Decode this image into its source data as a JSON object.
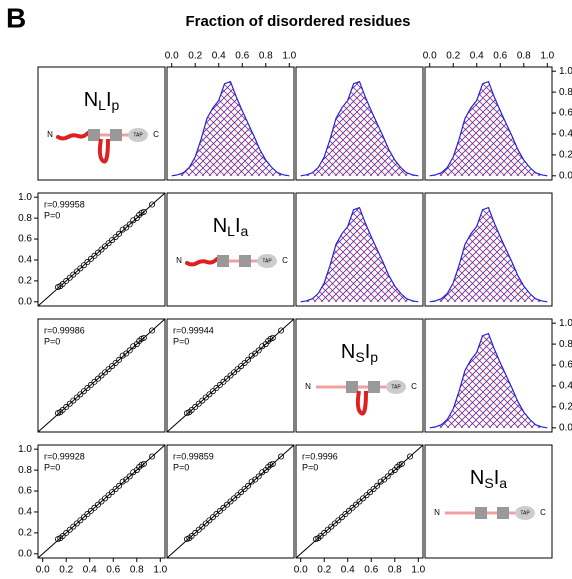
{
  "panel_label": "B",
  "title": "Fraction of disordered residues",
  "axis": {
    "lim": [
      0,
      1
    ],
    "ticks": [
      {
        "value": 0,
        "label": "0.0"
      },
      0.2,
      0.4,
      0.6,
      0.8,
      {
        "value": 1,
        "label": "1.0"
      }
    ]
  },
  "variables": [
    {
      "label": [
        "N",
        "L",
        "I",
        "p"
      ]
    },
    {
      "label": [
        "N",
        "L",
        "I",
        "a"
      ]
    },
    {
      "label": [
        "N",
        "S",
        "I",
        "p"
      ]
    },
    {
      "label": [
        "N",
        "S",
        "I",
        "a"
      ]
    }
  ],
  "schematic": {
    "n": "N",
    "tag": "TAP",
    "c": "C"
  },
  "correlations": [
    {
      "row": 1,
      "col": 0,
      "r": "r=0.99958",
      "P": "P=0"
    },
    {
      "row": 2,
      "col": 0,
      "r": "r=0.99986",
      "P": "P=0"
    },
    {
      "row": 2,
      "col": 1,
      "r": "r=0.99944",
      "P": "P=0"
    },
    {
      "row": 3,
      "col": 0,
      "r": "r=0.99928",
      "P": "P=0"
    },
    {
      "row": 3,
      "col": 1,
      "r": "r=0.99859",
      "P": "P=0"
    },
    {
      "row": 3,
      "col": 2,
      "r": "r=0.9996",
      "P": "P=0"
    }
  ],
  "density": {
    "x": [
      0,
      0.05,
      0.1,
      0.15,
      0.2,
      0.25,
      0.3,
      0.35,
      0.4,
      0.45,
      0.5,
      0.55,
      0.6,
      0.65,
      0.7,
      0.75,
      0.8,
      0.85,
      0.9,
      0.95,
      1
    ],
    "y": [
      0,
      0.01,
      0.03,
      0.08,
      0.18,
      0.35,
      0.55,
      0.65,
      0.72,
      0.88,
      0.9,
      0.75,
      0.62,
      0.5,
      0.38,
      0.25,
      0.15,
      0.08,
      0.03,
      0.01,
      0
    ]
  },
  "points": {
    "x": [
      0.13,
      0.15,
      0.17,
      0.2,
      0.23,
      0.26,
      0.29,
      0.32,
      0.35,
      0.38,
      0.41,
      0.44,
      0.47,
      0.5,
      0.53,
      0.56,
      0.59,
      0.62,
      0.65,
      0.68,
      0.71,
      0.74,
      0.77,
      0.8,
      0.82,
      0.84,
      0.86,
      0.93
    ],
    "y": [
      0.14,
      0.15,
      0.17,
      0.2,
      0.23,
      0.26,
      0.29,
      0.32,
      0.35,
      0.38,
      0.41,
      0.44,
      0.47,
      0.5,
      0.53,
      0.56,
      0.59,
      0.62,
      0.65,
      0.69,
      0.71,
      0.74,
      0.78,
      0.8,
      0.83,
      0.85,
      0.86,
      0.93
    ]
  }
}
